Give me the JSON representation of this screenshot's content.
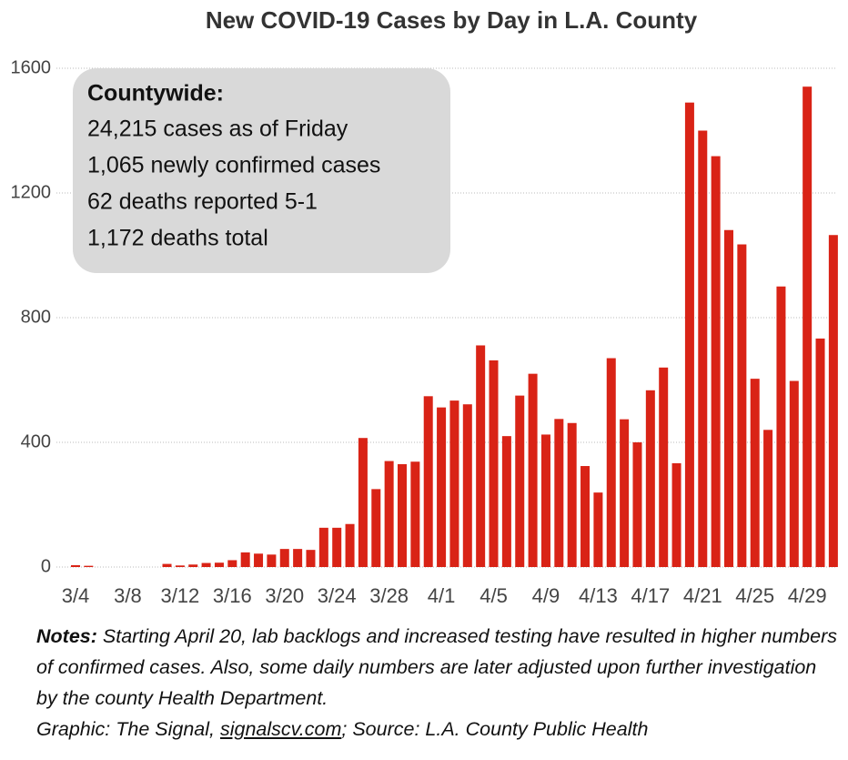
{
  "chart_data": {
    "type": "bar",
    "title": "New COVID-19 Cases by Day in L.A. County",
    "categories": [
      "3/4",
      null,
      null,
      null,
      "3/8",
      null,
      null,
      null,
      "3/12",
      null,
      null,
      null,
      "3/16",
      null,
      null,
      null,
      "3/20",
      null,
      null,
      null,
      "3/24",
      null,
      null,
      null,
      "3/28",
      null,
      null,
      null,
      "4/1",
      null,
      null,
      null,
      "4/5",
      null,
      null,
      null,
      "4/9",
      null,
      null,
      null,
      "4/13",
      null,
      null,
      null,
      "4/17",
      null,
      null,
      null,
      "4/21",
      null,
      null,
      null,
      "4/25",
      null,
      null,
      null,
      "4/29",
      null,
      null
    ],
    "values": [
      6,
      4,
      0,
      0,
      0,
      0,
      0,
      10,
      5,
      8,
      13,
      14,
      22,
      47,
      43,
      40,
      58,
      58,
      55,
      126,
      126,
      138,
      414,
      250,
      340,
      330,
      338,
      548,
      512,
      534,
      522,
      711,
      663,
      420,
      550,
      620,
      425,
      475,
      462,
      324,
      239,
      670,
      474,
      400,
      567,
      640,
      333,
      1490,
      1400,
      1318,
      1081,
      1035,
      604,
      440,
      900,
      597,
      1541,
      733,
      1065
    ],
    "color": "#d92316",
    "ylim": [
      0,
      1600
    ],
    "yticks": [
      0,
      400,
      800,
      1200,
      1600
    ],
    "grid": true,
    "annotation": {
      "title": "Countywide:",
      "lines": [
        "24,215 cases as of Friday",
        "1,065 newly confirmed cases",
        "62 deaths reported 5-1",
        "1,172 deaths total"
      ]
    }
  },
  "notes": {
    "label": "Notes:",
    "text": " Starting April 20, lab backlogs and increased testing have resulted in higher numbers of confirmed cases. Also, some daily numbers are later adjusted upon further investigation by the county Health Department."
  },
  "credit": {
    "prefix": "Graphic: The Signal, ",
    "link": "signalscv.com",
    "source": "; Source: L.A. County Public Health"
  }
}
